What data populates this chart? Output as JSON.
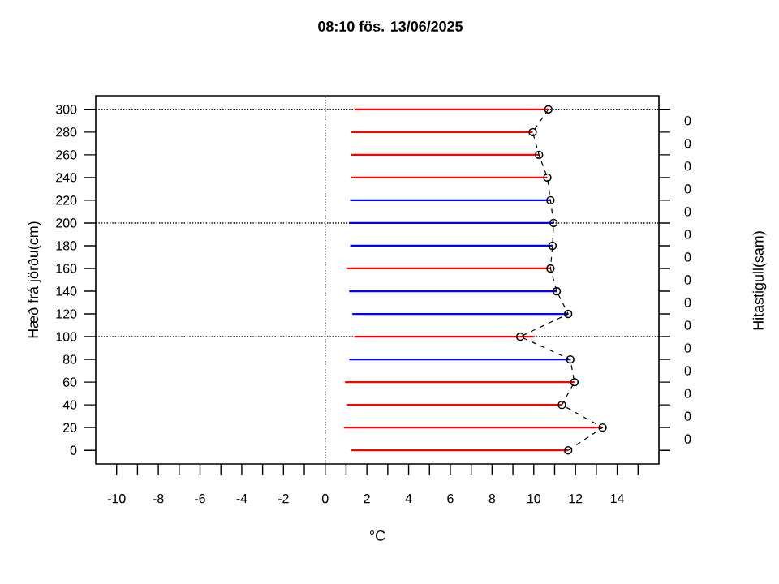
{
  "chart_data": {
    "type": "bar",
    "orientation": "horizontal",
    "title": "08:10   fös.  13/06/2025",
    "xlabel": "°C",
    "ylabel": "Hæð frá jörðu(cm)",
    "xlim": [
      -11,
      16
    ],
    "ylim": [
      -12,
      312
    ],
    "xticks": [
      -10,
      {
        "value": -9,
        "label": null
      },
      -8,
      {
        "value": -7,
        "label": null
      },
      -6,
      {
        "value": -5,
        "label": null
      },
      -4,
      {
        "value": -3,
        "label": null
      },
      -2,
      {
        "value": -1,
        "label": null
      },
      0,
      {
        "value": 1,
        "label": null
      },
      2,
      {
        "value": 3,
        "label": null
      },
      4,
      {
        "value": 5,
        "label": null
      },
      6,
      {
        "value": 7,
        "label": null
      },
      8,
      {
        "value": 9,
        "label": null
      },
      10,
      {
        "value": 11,
        "label": null
      },
      12,
      {
        "value": 13,
        "label": null
      },
      14,
      {
        "value": 15,
        "label": null
      }
    ],
    "yticks": [
      0,
      20,
      40,
      60,
      80,
      100,
      120,
      140,
      160,
      180,
      200,
      220,
      240,
      260,
      280,
      300
    ],
    "annotations": [
      "0",
      "0",
      "0",
      "0",
      "0",
      "0",
      "0",
      "0",
      "0",
      "0",
      "0",
      "0",
      "0",
      "0",
      "0",
      "Hitastigull(sam)"
    ],
    "series": [
      {
        "x": [
          0,
          20,
          40,
          60,
          80,
          100,
          120,
          140,
          160,
          180,
          200,
          220,
          240,
          260,
          280,
          300
        ],
        "base": [
          1.25,
          0.9,
          1.05,
          0.95,
          1.15,
          1.4,
          1.3,
          1.15,
          1.05,
          1.2,
          1.15,
          1.2,
          1.25,
          1.25,
          1.25,
          1.4
        ],
        "values": [
          10.4,
          12.4,
          10.3,
          11.0,
          10.6,
          8.6,
          10.35,
          9.95,
          9.75,
          9.7,
          9.8,
          9.6,
          9.4,
          9.0,
          8.7,
          9.3
        ],
        "colors": [
          "#ff0000",
          "#ff0000",
          "#ff0000",
          "#ff0000",
          "#0000ff",
          "#ff0000",
          "#0000ff",
          "#0000ff",
          "#ff0000",
          "#0000ff",
          "#0000ff",
          "#0000ff",
          "#ff0000",
          "#ff0000",
          "#ff0000",
          "#ff0000"
        ]
      },
      {
        "type": "line",
        "x": [
          0,
          20,
          40,
          60,
          80,
          100,
          120,
          140,
          160,
          180,
          200,
          220,
          240,
          260,
          280,
          300
        ],
        "values": [
          11.65,
          13.3,
          11.35,
          11.95,
          11.75,
          9.35,
          11.65,
          11.1,
          10.8,
          10.9,
          10.95,
          10.8,
          10.65,
          10.25,
          9.95,
          10.7
        ],
        "color": "#000000",
        "marker": "circle",
        "line_style": "dashed"
      }
    ],
    "ref_lines": [
      {
        "axis": "x",
        "value": 0,
        "line_style": "dotted"
      },
      {
        "axis": "y",
        "value": 100,
        "line_style": "dotted"
      },
      {
        "axis": "y",
        "value": 200,
        "line_style": "dotted"
      },
      {
        "axis": "y",
        "value": 300,
        "line_style": "dotted"
      }
    ]
  }
}
